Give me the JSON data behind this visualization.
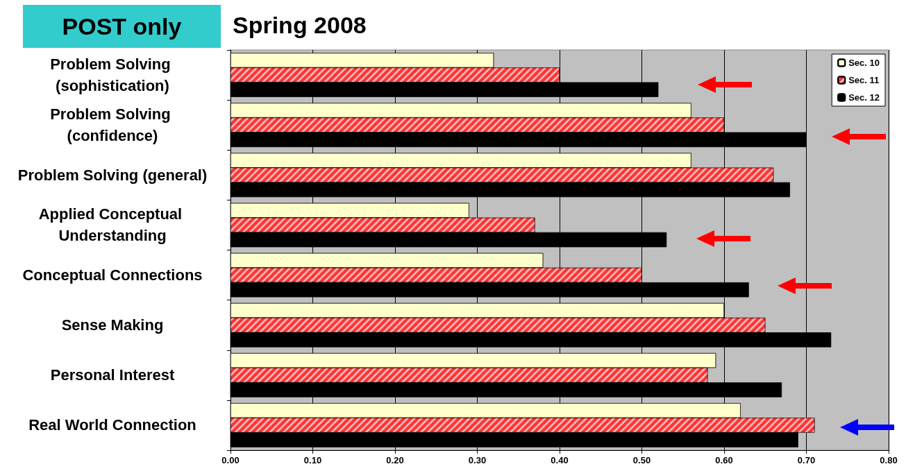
{
  "chart_data": {
    "type": "bar",
    "orientation": "horizontal",
    "title": "Spring 2008",
    "annotations": [
      "POST only"
    ],
    "categories": [
      "Problem Solving (sophistication)",
      "Problem Solving (confidence)",
      "Problem Solving (general)",
      "Applied Conceptual Understanding",
      "Conceptual Connections",
      "Sense Making",
      "Personal Interest",
      "Real World Connection"
    ],
    "series": [
      {
        "name": "Sec. 10",
        "color": "#ffffcc",
        "values": [
          0.32,
          0.56,
          0.56,
          0.29,
          0.38,
          0.6,
          0.59,
          0.62
        ]
      },
      {
        "name": "Sec. 11",
        "color": "#ff3333",
        "values": [
          0.4,
          0.6,
          0.66,
          0.37,
          0.5,
          0.65,
          0.58,
          0.71
        ]
      },
      {
        "name": "Sec. 12",
        "color": "#000000",
        "values": [
          0.52,
          0.7,
          0.68,
          0.53,
          0.63,
          0.73,
          0.67,
          0.69
        ]
      }
    ],
    "xlim": [
      0,
      0.8
    ],
    "xticks": [
      {
        "value": 0,
        "label": "0.00"
      },
      {
        "value": 0.1,
        "label": "0.10"
      },
      {
        "value": 0.2,
        "label": "0.20"
      },
      {
        "value": 0.3,
        "label": "0.30"
      },
      {
        "value": 0.4,
        "label": "0.40"
      },
      {
        "value": 0.5,
        "label": "0.50"
      },
      {
        "value": 0.6,
        "label": "0.60"
      },
      {
        "value": 0.7,
        "label": "0.70"
      },
      {
        "value": 0.8,
        "label": "0.80"
      }
    ],
    "grid": "x",
    "legend": "top right"
  }
}
